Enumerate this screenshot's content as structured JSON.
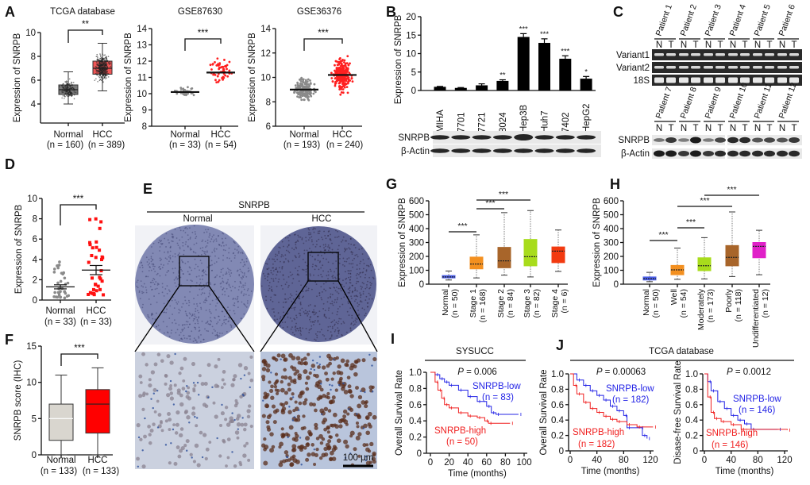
{
  "figure": {
    "panel_letters": {
      "C": "C",
      "E": "E",
      "J": "J"
    },
    "J_title": "TCGA database"
  },
  "colors": {
    "gel_background": "#2a2a2a",
    "blot_background": "#e8e8e8",
    "km_low": "#2424e6",
    "km_high": "#f02020"
  },
  "blots_C": {
    "patients_top": [
      "Patient 1",
      "Patient 2",
      "Patient 3",
      "Patient 4",
      "Patient 5",
      "Patient 6"
    ],
    "patients_bottom": [
      "Patient 7",
      "Patient 8",
      "Patient 9",
      "Patient 10",
      "Patient 11",
      "Patient 12"
    ],
    "lane_labels": [
      "N",
      "T"
    ],
    "gel_rows": [
      "Variant1",
      "Variant2",
      "18S"
    ],
    "blot_rows": [
      "SNRPB",
      "β-Actin"
    ]
  },
  "ihc_E": {
    "title": "SNRPB",
    "columns": [
      "Normal",
      "HCC"
    ],
    "scale_bar": "100 μm"
  },
  "chart_data": [
    {
      "panel": "A",
      "type": "box",
      "title": "TCGA database",
      "ylabel": "Expression of SNRPB",
      "ylim": [
        2.4,
        10
      ],
      "yticks": [
        "4",
        "6",
        "8",
        "10"
      ],
      "significance": "**",
      "groups": [
        {
          "label": "Normal",
          "n": "(n = 160)",
          "box": [
            4.0,
            4.8,
            5.2,
            5.6,
            6.7
          ],
          "color": "#7a7a7a"
        },
        {
          "label": "HCC",
          "n": "(n = 389)",
          "box": [
            5.1,
            6.5,
            7.0,
            7.6,
            9.1
          ],
          "color": "#f05555"
        }
      ]
    },
    {
      "panel": "",
      "type": "scatter",
      "title": "GSE87630",
      "ylabel": "Expression of SNRPB",
      "ylim": [
        8,
        14
      ],
      "yticks": [
        "8",
        "9",
        "10",
        "11",
        "12",
        "13",
        "14"
      ],
      "significance": "***",
      "groups": [
        {
          "label": "Normal",
          "n": "(n = 33)",
          "center": 10.1,
          "range": [
            9.4,
            10.4
          ],
          "color": "#8a8a8a"
        },
        {
          "label": "HCC",
          "n": "(n = 54)",
          "center": 11.3,
          "range": [
            9.8,
            12.6
          ],
          "color": "#ff2020"
        }
      ]
    },
    {
      "panel": "",
      "type": "scatter",
      "title": "GSE36376",
      "ylabel": "Expression of SNRPB",
      "ylim": [
        6,
        14
      ],
      "yticks": [
        "6",
        "8",
        "10",
        "12",
        "14"
      ],
      "significance": "***",
      "groups": [
        {
          "label": "Normal",
          "n": "(n = 193)",
          "center": 9.0,
          "range": [
            7.9,
            10.4
          ],
          "color": "#8a8a8a"
        },
        {
          "label": "HCC",
          "n": "(n = 240)",
          "center": 10.2,
          "range": [
            8.5,
            12.3
          ],
          "color": "#ff2020"
        }
      ]
    },
    {
      "panel": "B",
      "type": "bar",
      "ylabel": "Expression of SNRPB",
      "ylim": [
        0,
        20
      ],
      "yticks": [
        "0",
        "5",
        "10",
        "15",
        "20"
      ],
      "categories": [
        "MIHA",
        "7701",
        "7721",
        "8024",
        "Hep3B",
        "Huh7",
        "7402",
        "HepG2"
      ],
      "values": [
        1.0,
        0.7,
        1.4,
        2.6,
        14.5,
        12.9,
        8.6,
        3.2
      ],
      "errors": [
        0.1,
        0.1,
        0.4,
        0.3,
        0.9,
        1.1,
        0.8,
        0.6
      ],
      "significance": [
        "",
        "",
        "",
        "**",
        "***",
        "***",
        "***",
        "*"
      ],
      "blot_rows": [
        "SNRPB",
        "β-Actin"
      ]
    },
    {
      "panel": "D",
      "type": "scatter_mean_sem",
      "ylabel": "Expression of SNRPB",
      "ylim": [
        0,
        10
      ],
      "yticks": [
        "0",
        "2",
        "4",
        "6",
        "8",
        "10"
      ],
      "significance": "***",
      "groups": [
        {
          "label": "Normal",
          "n": "(n = 33)",
          "center": 1.3,
          "sem": 0.2,
          "range": [
            0.2,
            4.0
          ],
          "color": "#8a8a8a"
        },
        {
          "label": "HCC",
          "n": "(n = 33)",
          "center": 2.95,
          "sem": 0.45,
          "range": [
            0.5,
            8.0
          ],
          "color": "#ff1010"
        }
      ]
    },
    {
      "panel": "F",
      "type": "box",
      "ylabel": "SNRPB score (IHC)",
      "ylim": [
        0,
        15
      ],
      "yticks": [
        "0",
        "5",
        "10",
        "15"
      ],
      "significance": "***",
      "groups": [
        {
          "label": "Normal",
          "n": "(n = 133)",
          "box": [
            0,
            2,
            5,
            7,
            11
          ],
          "color": "#d9d6cf"
        },
        {
          "label": "HCC",
          "n": "(n = 133)",
          "box": [
            0,
            3,
            7,
            9,
            12
          ],
          "color": "#ff0000"
        }
      ]
    },
    {
      "panel": "G",
      "type": "box",
      "ylabel": "Expression of SNRPB",
      "ylim": [
        0,
        600
      ],
      "yticks": [
        "0",
        "100",
        "200",
        "300",
        "400",
        "500",
        "600"
      ],
      "groups": [
        {
          "label": "Normal",
          "n": "(n = 50)",
          "box": [
            30,
            45,
            52,
            62,
            95
          ],
          "color": "#4a5ee8"
        },
        {
          "label": "Stage 1",
          "n": "(n = 168)",
          "box": [
            45,
            110,
            145,
            195,
            355
          ],
          "color": "#f39020"
        },
        {
          "label": "Stage 2",
          "n": "(n = 84)",
          "box": [
            65,
            118,
            168,
            265,
            515
          ],
          "color": "#a8652a"
        },
        {
          "label": "Stage 3",
          "n": "(n = 82)",
          "box": [
            52,
            132,
            198,
            322,
            530
          ],
          "color": "#a8dc1c"
        },
        {
          "label": "Stage 4",
          "n": "(n = 6)",
          "box": [
            92,
            155,
            238,
            268,
            390
          ],
          "color": "#f23a10"
        }
      ],
      "comparisons": [
        {
          "from": 0,
          "to": 1,
          "label": "***"
        },
        {
          "from": 1,
          "to": 2,
          "label": "***"
        },
        {
          "from": 1,
          "to": 3,
          "label": "***"
        }
      ]
    },
    {
      "panel": "H",
      "type": "box",
      "ylabel": "Expression of SNRPB",
      "ylim": [
        0,
        600
      ],
      "yticks": [
        "0",
        "100",
        "200",
        "300",
        "400",
        "500",
        "600"
      ],
      "groups": [
        {
          "label": "Normal",
          "n": "(n = 50)",
          "box": [
            18,
            30,
            40,
            52,
            85
          ],
          "color": "#4a5ee8"
        },
        {
          "label": "Well",
          "n": "(n = 54)",
          "box": [
            35,
            68,
            103,
            135,
            260
          ],
          "color": "#f39020"
        },
        {
          "label": "Moderately",
          "n": "(n = 173)",
          "box": [
            38,
            97,
            133,
            190,
            335
          ],
          "color": "#a8dc1c"
        },
        {
          "label": "Poorly",
          "n": "(n = 118)",
          "box": [
            55,
            132,
            193,
            278,
            520
          ],
          "color": "#a8652a"
        },
        {
          "label": "Undifferentiated",
          "n": "(n = 12)",
          "box": [
            68,
            190,
            272,
            300,
            388
          ],
          "color": "#e020c8"
        }
      ],
      "comparisons": [
        {
          "from": 0,
          "to": 1,
          "label": "***"
        },
        {
          "from": 1,
          "to": 2,
          "label": "***"
        },
        {
          "from": 1,
          "to": 3,
          "label": "***"
        },
        {
          "from": 2,
          "to": 4,
          "label": "***"
        }
      ]
    },
    {
      "panel": "I",
      "type": "km",
      "title": "SYSUCC",
      "ylabel": "Overall Survival Rate",
      "xlabel": "Time (months)",
      "xlim": [
        0,
        100
      ],
      "xticks": [
        "0",
        "20",
        "40",
        "60",
        "80",
        "100"
      ],
      "ylim": [
        0,
        1
      ],
      "yticks": [
        "0",
        "0.2",
        "0.4",
        "0.6",
        "0.8",
        "1.0"
      ],
      "p_label": "P",
      "p_value": " = 0.006",
      "series": [
        {
          "name": "SNRPB-low",
          "n": "(n = 83)",
          "color": "#2424e6",
          "points": [
            [
              0,
              1
            ],
            [
              5,
              0.97
            ],
            [
              10,
              0.92
            ],
            [
              15,
              0.88
            ],
            [
              20,
              0.84
            ],
            [
              30,
              0.78
            ],
            [
              40,
              0.7
            ],
            [
              50,
              0.64
            ],
            [
              60,
              0.58
            ],
            [
              65,
              0.5
            ],
            [
              70,
              0.48
            ],
            [
              94,
              0.48
            ]
          ]
        },
        {
          "name": "SNRPB-high",
          "n": "(n = 50)",
          "color": "#f02020",
          "points": [
            [
              0,
              1
            ],
            [
              5,
              0.88
            ],
            [
              8,
              0.78
            ],
            [
              12,
              0.68
            ],
            [
              15,
              0.6
            ],
            [
              20,
              0.56
            ],
            [
              30,
              0.5
            ],
            [
              40,
              0.46
            ],
            [
              50,
              0.44
            ],
            [
              58,
              0.4
            ],
            [
              62,
              0.37
            ],
            [
              85,
              0.37
            ]
          ]
        }
      ]
    },
    {
      "panel": "",
      "type": "km",
      "ylabel": "Overall Survival Rate",
      "xlabel": "Time (months)",
      "xlim": [
        0,
        120
      ],
      "xticks": [
        "0",
        "40",
        "80",
        "120"
      ],
      "ylim": [
        0,
        1
      ],
      "yticks": [
        "0",
        "0.2",
        "0.4",
        "0.6",
        "0.8",
        "1.0"
      ],
      "p_label": "P",
      "p_value": " = 0.00063",
      "series": [
        {
          "name": "SNRPB-low",
          "n": "(n = 182)",
          "color": "#2424e6",
          "points": [
            [
              0,
              1
            ],
            [
              10,
              0.92
            ],
            [
              20,
              0.85
            ],
            [
              30,
              0.78
            ],
            [
              40,
              0.72
            ],
            [
              50,
              0.66
            ],
            [
              60,
              0.58
            ],
            [
              70,
              0.52
            ],
            [
              80,
              0.46
            ],
            [
              85,
              0.3
            ],
            [
              105,
              0.3
            ],
            [
              108,
              0.2
            ],
            [
              115,
              0.16
            ]
          ]
        },
        {
          "name": "SNRPB-high",
          "n": "(n = 182)",
          "color": "#f02020",
          "points": [
            [
              0,
              1
            ],
            [
              5,
              0.85
            ],
            [
              10,
              0.74
            ],
            [
              20,
              0.63
            ],
            [
              30,
              0.55
            ],
            [
              40,
              0.5
            ],
            [
              50,
              0.45
            ],
            [
              60,
              0.41
            ],
            [
              70,
              0.38
            ],
            [
              85,
              0.34
            ],
            [
              100,
              0.31
            ],
            [
              124,
              0.31
            ]
          ]
        }
      ]
    },
    {
      "panel": "",
      "type": "km",
      "ylabel": "Disase-free Survival Rate",
      "xlabel": "Time (months)",
      "xlim": [
        0,
        120
      ],
      "xticks": [
        "0",
        "40",
        "80",
        "120"
      ],
      "ylim": [
        0,
        1
      ],
      "yticks": [
        "0",
        "0.2",
        "0.4",
        "0.6",
        "0.8",
        "1.0"
      ],
      "p_label": "P",
      "p_value": " = 0.0012",
      "series": [
        {
          "name": "SNRPB-low",
          "n": "(n = 146)",
          "color": "#2424e6",
          "points": [
            [
              0,
              1
            ],
            [
              5,
              0.9
            ],
            [
              10,
              0.78
            ],
            [
              20,
              0.64
            ],
            [
              30,
              0.55
            ],
            [
              40,
              0.46
            ],
            [
              50,
              0.4
            ],
            [
              60,
              0.35
            ],
            [
              70,
              0.28
            ],
            [
              110,
              0.28
            ]
          ]
        },
        {
          "name": "SNRPB-high",
          "n": "(n = 146)",
          "color": "#f02020",
          "points": [
            [
              0,
              1
            ],
            [
              5,
              0.7
            ],
            [
              10,
              0.5
            ],
            [
              15,
              0.42
            ],
            [
              25,
              0.38
            ],
            [
              40,
              0.34
            ],
            [
              55,
              0.28
            ],
            [
              124,
              0.27
            ]
          ]
        }
      ]
    }
  ]
}
